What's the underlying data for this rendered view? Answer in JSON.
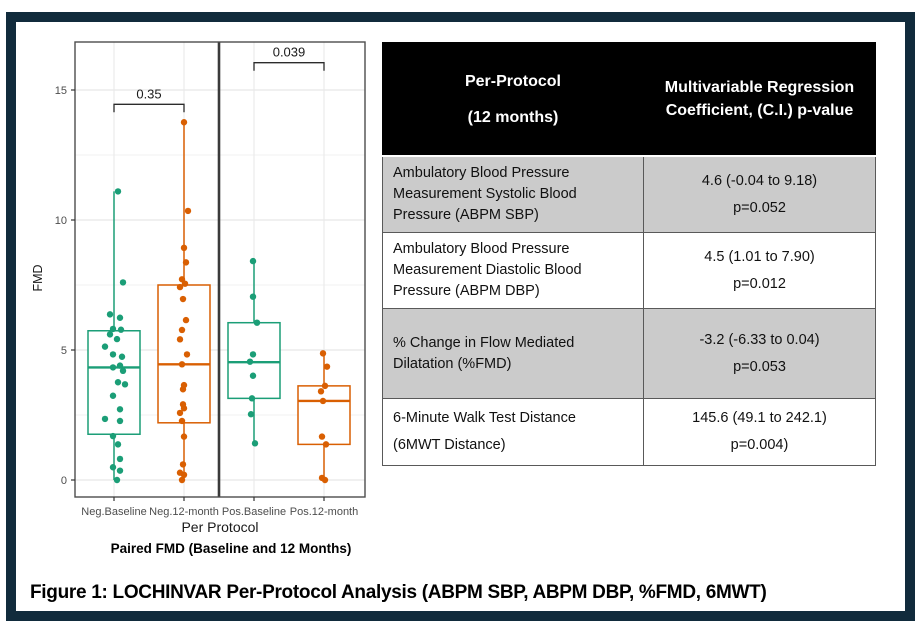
{
  "figure": {
    "caption": "Figure 1: LOCHINVAR Per-Protocol Analysis (ABPM SBP, ABPM DBP, %FMD, 6MWT)"
  },
  "colors": {
    "frame": "#112b3c",
    "table_header_bg": "#000000",
    "table_row_shaded": "#cbcbcb",
    "group_green": "#1b9e77",
    "group_orange": "#d95f02"
  },
  "table": {
    "header": {
      "col1_line1": "Per-Protocol",
      "col1_line2": "(12 months)",
      "col2": "Multivariable Regression Coefficient, (C.I.) p-value"
    },
    "rows": [
      {
        "label": "Ambulatory Blood Pressure Measurement Systolic Blood Pressure (ABPM SBP)",
        "estimate": "4.6 (-0.04 to 9.18)",
        "pvalue": "p=0.052",
        "shaded": true
      },
      {
        "label": "Ambulatory Blood Pressure Measurement Diastolic Blood Pressure (ABPM DBP)",
        "estimate": "4.5 (1.01 to 7.90)",
        "pvalue": "p=0.012",
        "shaded": false
      },
      {
        "label": "% Change in Flow Mediated Dilatation (%FMD)",
        "estimate": "-3.2 (-6.33 to 0.04)",
        "pvalue": "p=0.053",
        "shaded": true
      },
      {
        "label": "6-Minute Walk Test Distance\n(6MWT Distance)",
        "estimate": "145.6 (49.1 to 242.1)",
        "pvalue": "p=0.004)",
        "shaded": false
      }
    ]
  },
  "chart_data": {
    "type": "box",
    "title": "",
    "ylabel": "FMD",
    "xlabel": "Per Protocol",
    "caption": "Paired FMD (Baseline and 12 Months)",
    "ylim": [
      0,
      16.8
    ],
    "yticks": [
      0,
      5,
      10,
      15
    ],
    "grid": true,
    "legend": "none",
    "facet_divider_between": [
      1,
      2
    ],
    "groups": [
      {
        "label": "Neg.Baseline",
        "color": "#1b9e77",
        "box": {
          "lo": 0,
          "q1": 1.76,
          "median": 4.33,
          "q3": 5.74,
          "hi": 11.1
        },
        "points": [
          [
            4,
            11.1
          ],
          [
            9,
            7.6
          ],
          [
            -4,
            6.37
          ],
          [
            6,
            6.24
          ],
          [
            -1,
            5.81
          ],
          [
            7,
            5.78
          ],
          [
            -4,
            5.6
          ],
          [
            3,
            5.42
          ],
          [
            -9,
            5.13
          ],
          [
            -1,
            4.83
          ],
          [
            8,
            4.74
          ],
          [
            6,
            4.4
          ],
          [
            -1,
            4.33
          ],
          [
            9,
            4.2
          ],
          [
            4,
            3.76
          ],
          [
            11,
            3.68
          ],
          [
            -1,
            3.24
          ],
          [
            6,
            2.72
          ],
          [
            -9,
            2.35
          ],
          [
            6,
            2.27
          ],
          [
            -1,
            1.69
          ],
          [
            4,
            1.37
          ],
          [
            6,
            0.81
          ],
          [
            -1,
            0.49
          ],
          [
            6,
            0.36
          ],
          [
            3,
            0.0
          ]
        ]
      },
      {
        "label": "Neg.12-month",
        "color": "#d95f02",
        "box": {
          "lo": 0,
          "q1": 2.2,
          "median": 4.45,
          "q3": 7.5,
          "hi": 13.76
        },
        "points": [
          [
            0,
            13.76
          ],
          [
            4,
            10.35
          ],
          [
            0,
            8.93
          ],
          [
            2,
            8.37
          ],
          [
            -2,
            7.72
          ],
          [
            1,
            7.55
          ],
          [
            -4,
            7.42
          ],
          [
            -1,
            6.96
          ],
          [
            2,
            6.15
          ],
          [
            -2,
            5.77
          ],
          [
            -4,
            5.41
          ],
          [
            3,
            4.83
          ],
          [
            -2,
            4.45
          ],
          [
            0,
            3.65
          ],
          [
            -1,
            3.49
          ],
          [
            -1,
            2.91
          ],
          [
            0,
            2.76
          ],
          [
            -4,
            2.58
          ],
          [
            -2,
            2.27
          ],
          [
            0,
            1.67
          ],
          [
            -1,
            0.6
          ],
          [
            -4,
            0.28
          ],
          [
            0,
            0.2
          ],
          [
            -2,
            0.0
          ]
        ]
      },
      {
        "label": "Pos.Baseline",
        "color": "#1b9e77",
        "box": {
          "lo": 1.41,
          "q1": 3.14,
          "median": 4.53,
          "q3": 6.05,
          "hi": 8.42
        },
        "points": [
          [
            -1,
            8.42
          ],
          [
            -1,
            7.05
          ],
          [
            3,
            6.05
          ],
          [
            -1,
            4.83
          ],
          [
            -4,
            4.55
          ],
          [
            -1,
            4.01
          ],
          [
            -2,
            3.14
          ],
          [
            -3,
            2.53
          ],
          [
            1,
            1.41
          ]
        ]
      },
      {
        "label": "Pos.12-month",
        "color": "#d95f02",
        "box": {
          "lo": 0,
          "q1": 1.37,
          "median": 3.04,
          "q3": 3.62,
          "hi": 4.87
        },
        "points": [
          [
            -1,
            4.87
          ],
          [
            3,
            4.36
          ],
          [
            1,
            3.62
          ],
          [
            -3,
            3.41
          ],
          [
            -1,
            3.04
          ],
          [
            -2,
            1.67
          ],
          [
            2,
            1.37
          ],
          [
            -2,
            0.08
          ],
          [
            1,
            0.0
          ]
        ]
      }
    ],
    "comparisons": [
      {
        "group1": 0,
        "group2": 1,
        "label": "0.35",
        "y": 14.45
      },
      {
        "group1": 2,
        "group2": 3,
        "label": "0.039",
        "y": 16.05
      }
    ]
  }
}
